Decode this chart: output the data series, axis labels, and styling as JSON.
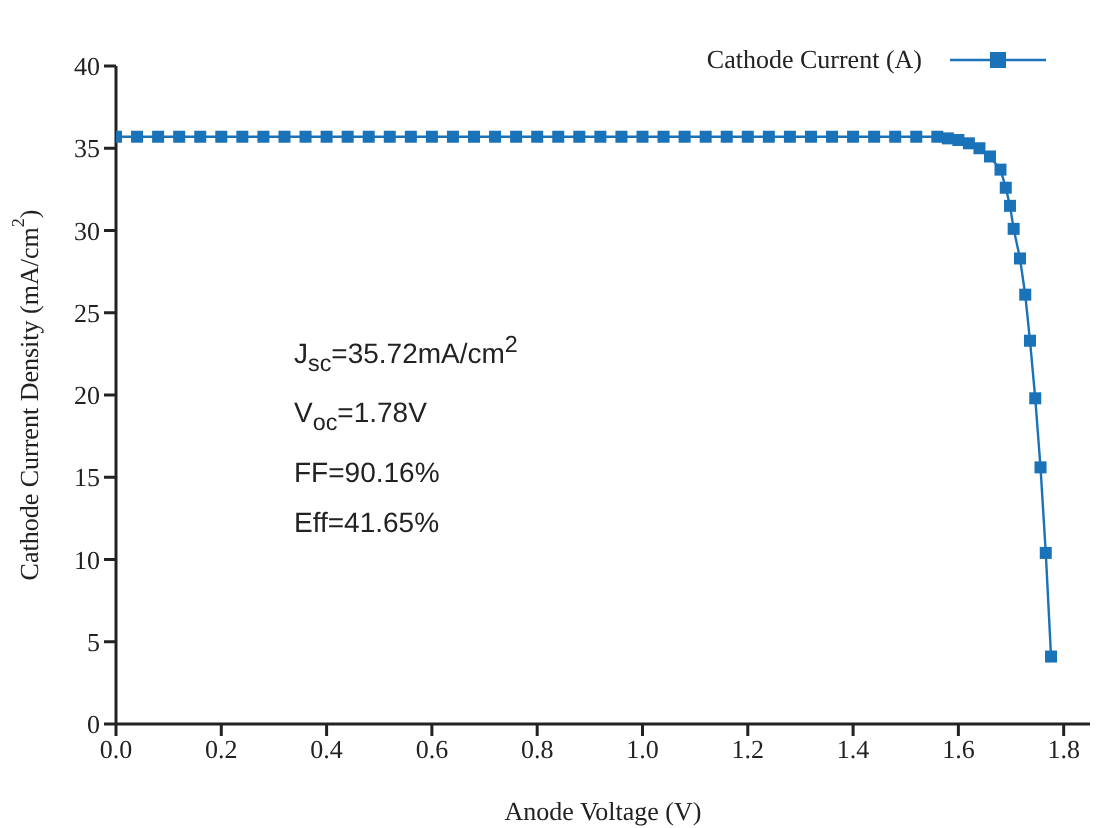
{
  "chart_data": {
    "type": "line",
    "xlabel": "Anode Voltage (V)",
    "ylabel": "Cathode Current Density (mA/cm$^{2}$)",
    "xlim": [
      0,
      1.85
    ],
    "xticks": [
      {
        "value": 0,
        "label": "0.0"
      },
      0.2,
      0.4,
      0.6,
      0.8,
      {
        "value": 1,
        "label": "1.0"
      },
      1.2,
      1.4,
      1.6,
      1.8
    ],
    "ylim": [
      0,
      40
    ],
    "yticks": [
      0,
      5,
      10,
      15,
      20,
      25,
      30,
      35,
      40
    ],
    "grid": false,
    "legend": "top right",
    "marker": "square",
    "line_style": "solid",
    "series": [
      {
        "name": "Cathode Current (A)",
        "color": "#1a72b8",
        "x": [
          0,
          0.04,
          0.08,
          0.12,
          0.16,
          0.2,
          0.24,
          0.28,
          0.32,
          0.36,
          0.4,
          0.44,
          0.48,
          0.52,
          0.56,
          0.6,
          0.64,
          0.68,
          0.72,
          0.76,
          0.8,
          0.84,
          0.88,
          0.92,
          0.96,
          1,
          1.04,
          1.08,
          1.12,
          1.16,
          1.2,
          1.24,
          1.28,
          1.32,
          1.36,
          1.4,
          1.44,
          1.48,
          1.52,
          1.56,
          1.58,
          1.6,
          1.62,
          1.64,
          1.66,
          1.68,
          1.69,
          1.698,
          1.705,
          1.717,
          1.727,
          1.736,
          1.746,
          1.756,
          1.766,
          1.776
        ],
        "values": [
          35.7,
          35.7,
          35.7,
          35.7,
          35.7,
          35.7,
          35.7,
          35.7,
          35.7,
          35.7,
          35.7,
          35.7,
          35.7,
          35.7,
          35.7,
          35.7,
          35.7,
          35.7,
          35.7,
          35.7,
          35.7,
          35.7,
          35.7,
          35.7,
          35.7,
          35.7,
          35.7,
          35.7,
          35.7,
          35.7,
          35.7,
          35.7,
          35.7,
          35.7,
          35.7,
          35.7,
          35.7,
          35.7,
          35.7,
          35.7,
          35.6,
          35.5,
          35.3,
          35,
          34.5,
          33.7,
          32.6,
          31.5,
          30.1,
          28.3,
          26.1,
          23.3,
          19.8,
          15.6,
          10.4,
          4.1
        ]
      }
    ],
    "annotations": [
      "J$_{sc}$=35.72mA/cm$^{2}$",
      "V$_{oc}$=1.78V",
      "FF=90.16%",
      "Eff=41.65%"
    ]
  }
}
